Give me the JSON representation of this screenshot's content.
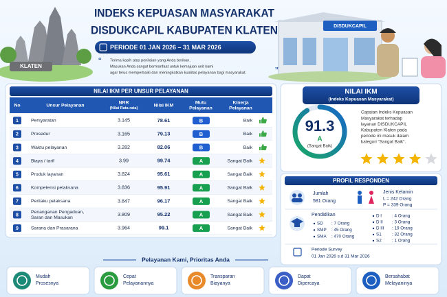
{
  "header": {
    "title_line1": "INDEKS KEPUASAN MASYARAKAT",
    "title_line2": "DISDUKCAPIL KABUPATEN KLATEN",
    "period": "PERIODE 01 JAN 2026 – 31 MAR 2026",
    "quote": [
      "Terima kasih atas penilaian yang Anda berikan.",
      "Masukan Anda sangat bermanfaat untuk kemajuan unit kami",
      "agar terus memperbaiki dan meningkatkan kualitas pelayanan bagi masyarakat."
    ],
    "left_sign": "KLATEN",
    "building_sign": "DISDUKCAPIL"
  },
  "table": {
    "title": "NILAI IKM PER UNSUR PELAYANAN",
    "columns": [
      [
        "No"
      ],
      [
        "Unsur Pelayanan"
      ],
      [
        "NRR",
        "(Nilai Rata-rata)"
      ],
      [
        "Nilai IKM"
      ],
      [
        "Mutu",
        "Pelayanan"
      ],
      [
        "Kinerja",
        "Pelayanan"
      ]
    ],
    "rows": [
      {
        "no": "1",
        "name": "Persyaratan",
        "nrr": "3.145",
        "ikm": "78.61",
        "mutu": "B",
        "kinerja": "Baik"
      },
      {
        "no": "2",
        "name": "Prosedur",
        "nrr": "3.165",
        "ikm": "79.13",
        "mutu": "B",
        "kinerja": "Baik"
      },
      {
        "no": "3",
        "name": "Waktu pelayanan",
        "nrr": "3.282",
        "ikm": "82.06",
        "mutu": "B",
        "kinerja": "Baik"
      },
      {
        "no": "4",
        "name": "Biaya / tarif",
        "nrr": "3.99",
        "ikm": "99.74",
        "mutu": "A",
        "kinerja": "Sangat Baik"
      },
      {
        "no": "5",
        "name": "Produk layanan",
        "nrr": "3.824",
        "ikm": "95.61",
        "mutu": "A",
        "kinerja": "Sangat Baik"
      },
      {
        "no": "6",
        "name": "Kompetensi pelaksana",
        "nrr": "3.836",
        "ikm": "95.91",
        "mutu": "A",
        "kinerja": "Sangat Baik"
      },
      {
        "no": "7",
        "name": "Perilaku pelaksana",
        "nrr": "3.847",
        "ikm": "96.17",
        "mutu": "A",
        "kinerja": "Sangat Baik"
      },
      {
        "no": "8",
        "name": [
          "Penanganan Pengaduan,",
          "Saran dan Masukan"
        ],
        "nrr": "3.809",
        "ikm": "95.22",
        "mutu": "A",
        "kinerja": "Sangat Baik"
      },
      {
        "no": "9",
        "name": "Sarana dan Prasarana",
        "nrr": "3.964",
        "ikm": "99.1",
        "mutu": "A",
        "kinerja": "Sangat Baik"
      }
    ]
  },
  "ikm_panel": {
    "title": "NILAI IKM",
    "subtitle": "(Indeks Kepuasan Masyarakat)",
    "score": "91.3",
    "grade": "A",
    "grade_label": "(Sangat Baik)",
    "description": [
      "Capaian Indeks Kepuasan",
      "Masyarakat terhadap",
      "layanan DISDUKCAPIL",
      "Kabupaten Klaten pada",
      "periode ini masuk dalam",
      "kategori “Sangat Baik”."
    ],
    "rating": 4,
    "rating_max": 5
  },
  "profile": {
    "title": "PROFIL RESPONDEN",
    "total_label": "Jumlah",
    "total_value": "581 Orang",
    "gender_label": "Jenis Kelamin",
    "gender": [
      "L = 242 Orang",
      "P = 339 Orang"
    ],
    "education_label": "Pendidikan",
    "education_left": [
      {
        "label": "SD",
        "value": ": 7 Orang"
      },
      {
        "label": "SMP",
        "value": ": 45 Orang"
      },
      {
        "label": "SMA",
        "value": ": 470 Orang"
      }
    ],
    "education_right": [
      {
        "label": "D I",
        "value": ": 4 Orang"
      },
      {
        "label": "D II",
        "value": ": 3 Orang"
      },
      {
        "label": "D III",
        "value": ": 19 Orang"
      },
      {
        "label": "S1",
        "value": ": 32 Orang"
      },
      {
        "label": "S2",
        "value": ": 1 Orang"
      }
    ],
    "period_label": "Periode Survey",
    "period_value": "01 Jan 2026 s.d 31 Mar 2026"
  },
  "footer": {
    "tagline": "Pelayanan Kami, Prioritas Anda",
    "items": [
      [
        "Mudah",
        "Prosesnya"
      ],
      [
        "Cepat",
        "Pelayanannya"
      ],
      [
        "Transparan",
        "Biayanya"
      ],
      [
        "Dapat",
        "Dipercaya"
      ],
      [
        "Bersahabat",
        "Melayaninya"
      ]
    ]
  }
}
